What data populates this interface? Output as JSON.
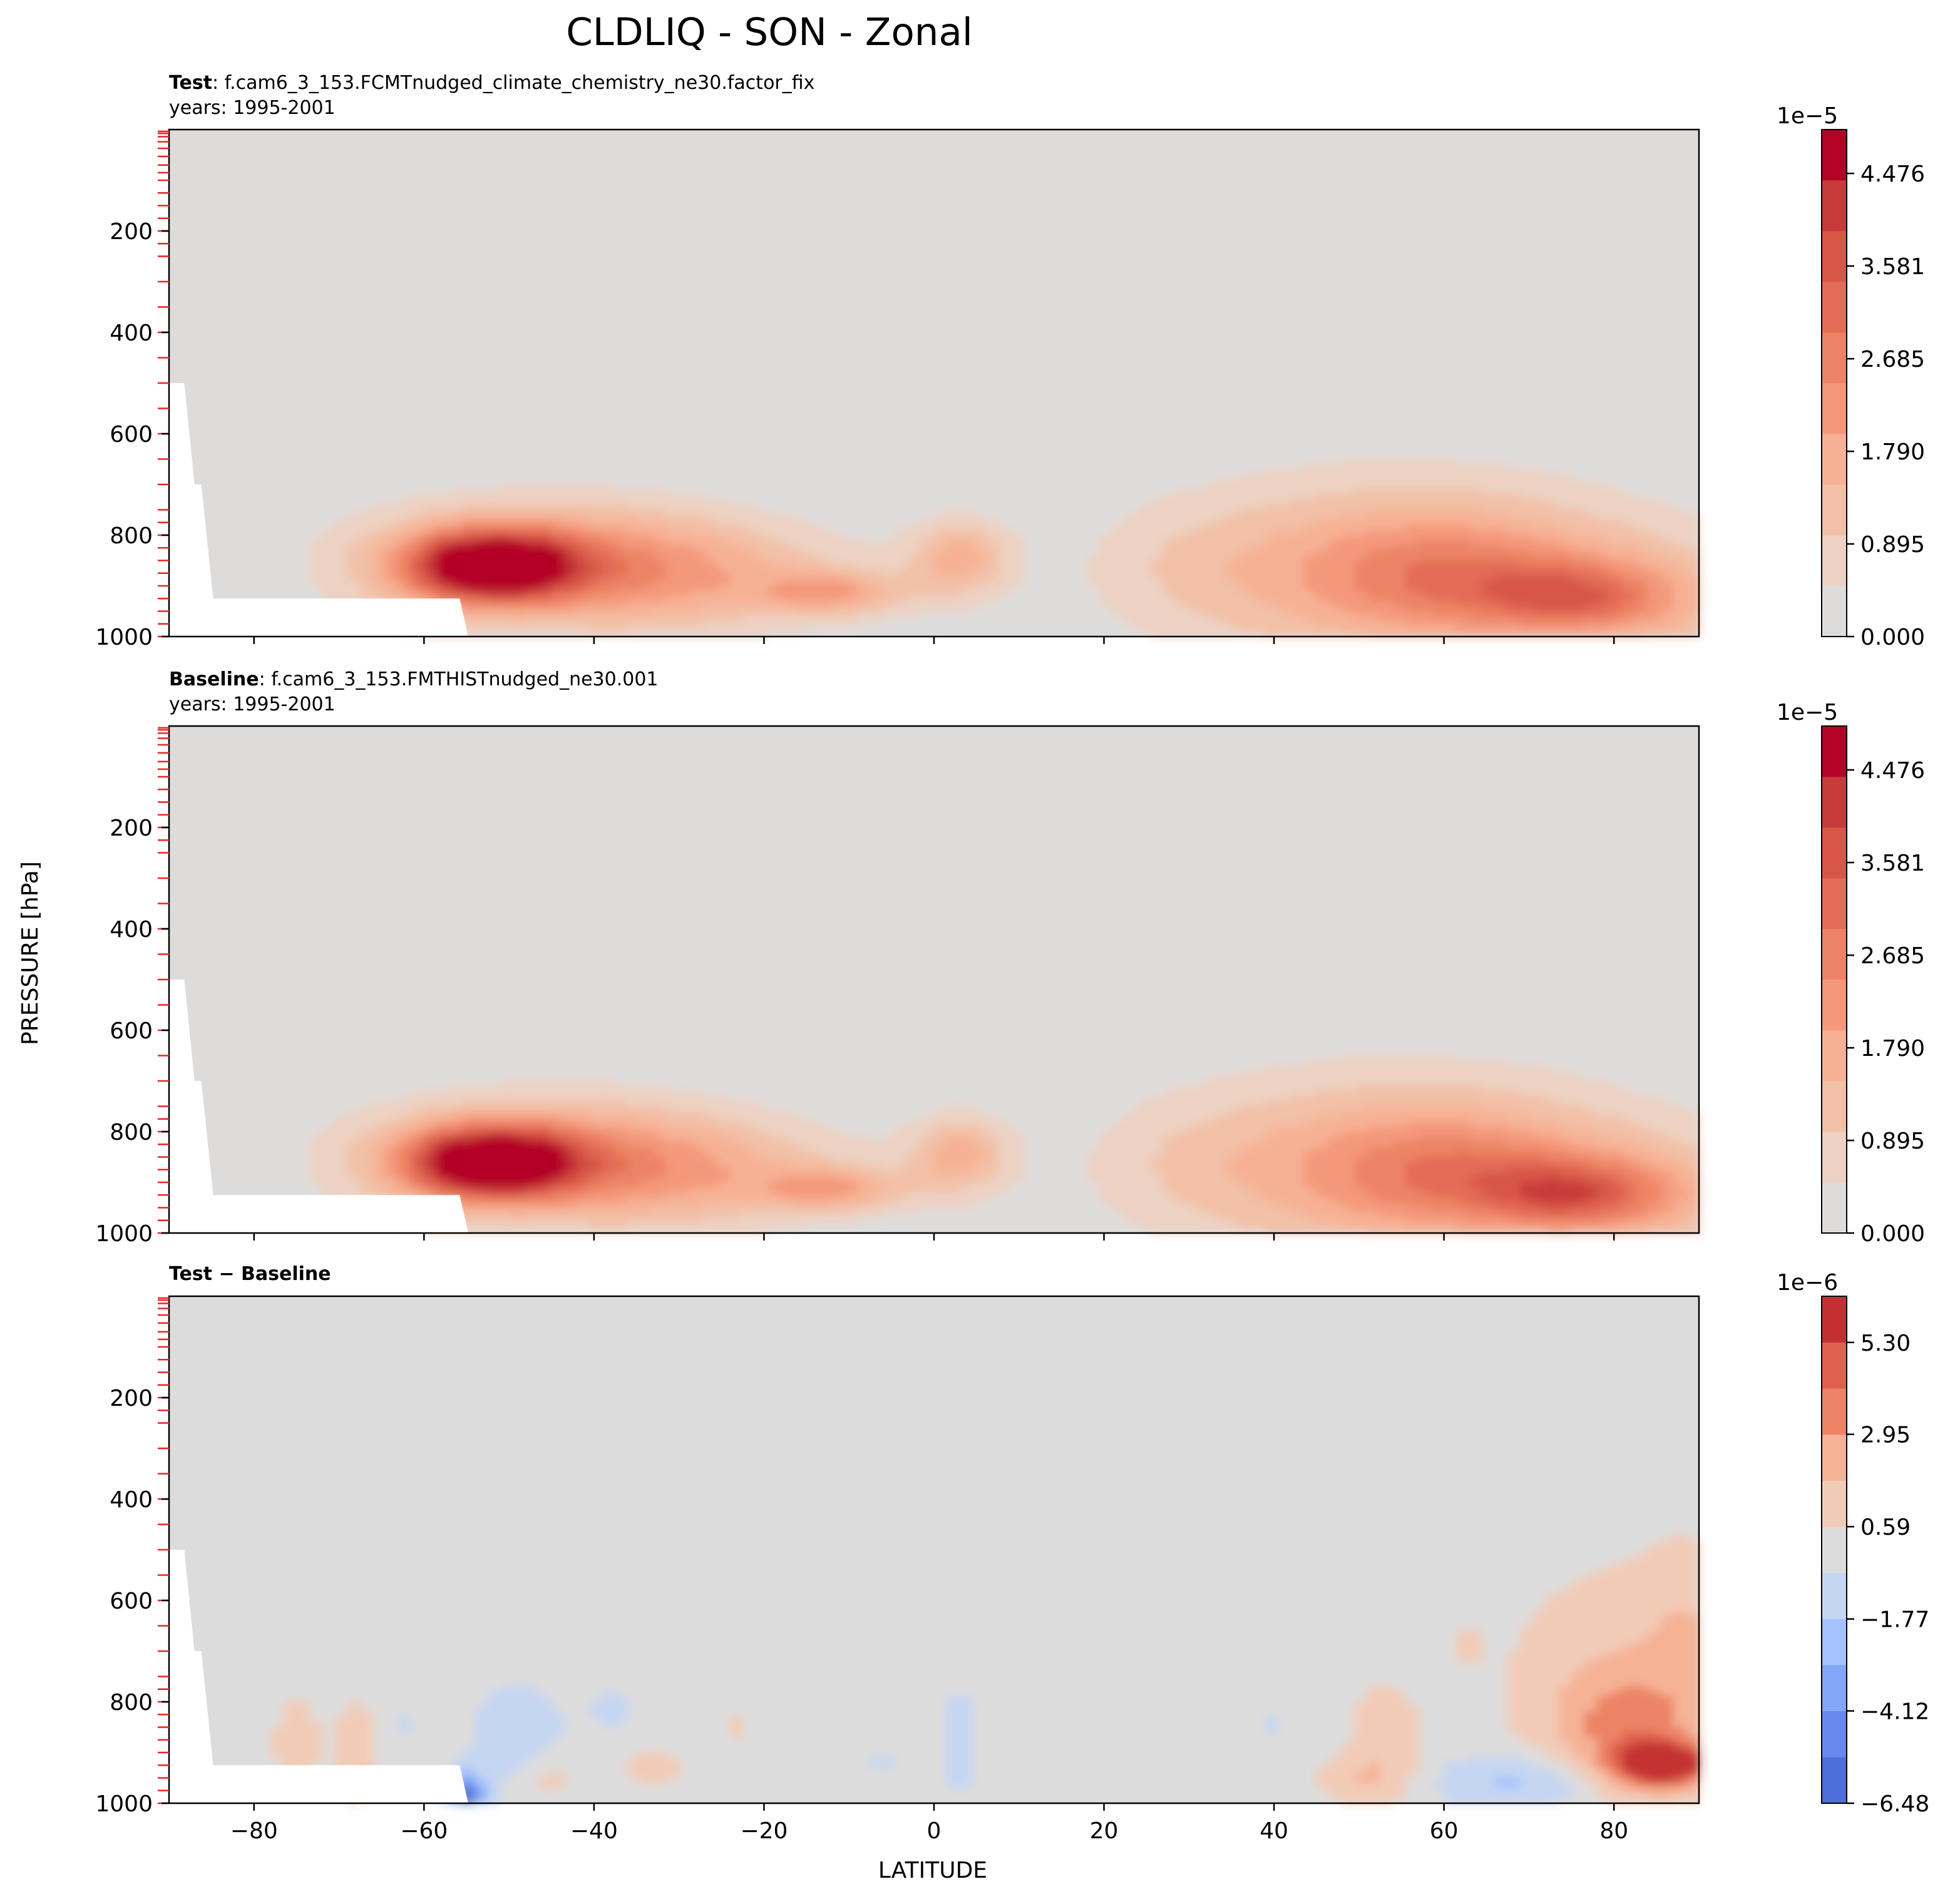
{
  "figure": {
    "suptitle": "CLDLIQ - SON - Zonal",
    "shared_ylabel": "PRESSURE [hPa]",
    "shared_xlabel": "LATITUDE"
  },
  "chart_data": [
    {
      "type": "contour",
      "panel": "test",
      "title_bold": "Test",
      "title_rest": ": f.cam6_3_153.FCMTnudged_climate_chemistry_ne30.factor_fix",
      "subtitle": "years: 1995-2001",
      "xlim": [
        -90,
        90
      ],
      "ylim": [
        1000,
        0
      ],
      "xticks": [
        -80,
        -60,
        -40,
        -20,
        0,
        20,
        40,
        60,
        80
      ],
      "yticks": [
        200,
        400,
        600,
        800,
        1000
      ],
      "colorbar": {
        "exponent": "1e−5",
        "min": 0.0,
        "max": 4.9,
        "tick_values": [
          0.0,
          0.895,
          1.79,
          2.685,
          3.581,
          4.476
        ],
        "tick_labels": [
          "0.000",
          "0.895",
          "1.790",
          "2.685",
          "3.581",
          "4.476"
        ],
        "colors": [
          "#dedcdb",
          "#edd1c2",
          "#f2c0a6",
          "#f6b194",
          "#f4987a",
          "#ed8365",
          "#e36c55",
          "#d85646",
          "#c83b3b",
          "#b40426"
        ]
      },
      "features": [
        {
          "name": "southern-ocean-max",
          "lat": -52,
          "p": 860,
          "value": 4.7
        },
        {
          "name": "arctic-max",
          "lat": 75,
          "p": 930,
          "value": 3.3
        },
        {
          "name": "northern-midlat",
          "lat": 60,
          "p": 880,
          "value": 2.9
        },
        {
          "name": "tropical-lobe",
          "lat": 3,
          "p": 850,
          "value": 1.6
        }
      ]
    },
    {
      "type": "contour",
      "panel": "baseline",
      "title_bold": "Baseline",
      "title_rest": ": f.cam6_3_153.FMTHISTnudged_ne30.001",
      "subtitle": "years: 1995-2001",
      "xlim": [
        -90,
        90
      ],
      "ylim": [
        1000,
        0
      ],
      "xticks": [
        -80,
        -60,
        -40,
        -20,
        0,
        20,
        40,
        60,
        80
      ],
      "yticks": [
        200,
        400,
        600,
        800,
        1000
      ],
      "colorbar": {
        "exponent": "1e−5",
        "min": 0.0,
        "max": 4.9,
        "tick_values": [
          0.0,
          0.895,
          1.79,
          2.685,
          3.581,
          4.476
        ],
        "tick_labels": [
          "0.000",
          "0.895",
          "1.790",
          "2.685",
          "3.581",
          "4.476"
        ],
        "colors": [
          "#dedcdb",
          "#edd1c2",
          "#f2c0a6",
          "#f6b194",
          "#f4987a",
          "#ed8365",
          "#e36c55",
          "#d85646",
          "#c83b3b",
          "#b40426"
        ]
      },
      "features": [
        {
          "name": "southern-ocean-max",
          "lat": -52,
          "p": 860,
          "value": 4.7
        },
        {
          "name": "arctic-max",
          "lat": 75,
          "p": 930,
          "value": 3.6
        },
        {
          "name": "northern-midlat",
          "lat": 60,
          "p": 880,
          "value": 2.9
        },
        {
          "name": "tropical-lobe",
          "lat": 3,
          "p": 850,
          "value": 1.6
        }
      ]
    },
    {
      "type": "contour",
      "panel": "difference",
      "title_bold": "Test − Baseline",
      "xlim": [
        -90,
        90
      ],
      "ylim": [
        1000,
        0
      ],
      "xticks": [
        -80,
        -60,
        -40,
        -20,
        0,
        20,
        40,
        60,
        80
      ],
      "xtick_labels": [
        "−80",
        "−60",
        "−40",
        "−20",
        "0",
        "20",
        "40",
        "60",
        "80"
      ],
      "yticks": [
        200,
        400,
        600,
        800,
        1000
      ],
      "colorbar": {
        "exponent": "1e−6",
        "min": -6.48,
        "max": 6.48,
        "tick_values": [
          -6.48,
          -4.12,
          -1.77,
          0.59,
          2.95,
          5.3
        ],
        "tick_labels": [
          "−6.48",
          "−4.12",
          "−1.77",
          "0.59",
          "2.95",
          "5.30"
        ],
        "colors": [
          "#4c6fd8",
          "#6788ee",
          "#84a6f8",
          "#a3c2fe",
          "#c5d6f2",
          "#dddcdc",
          "#f2cbb7",
          "#f5b295",
          "#ed8365",
          "#de604d",
          "#c43032"
        ]
      },
      "features": [
        {
          "name": "arctic-positive",
          "lat": 85,
          "p": 920,
          "value": 6.0
        },
        {
          "name": "arctic-positive-broad",
          "lat": 82,
          "p": 760,
          "value": 1.5
        },
        {
          "name": "northern-negative",
          "lat": 70,
          "p": 950,
          "value": -1.5
        },
        {
          "name": "antarctic-edge-negative",
          "lat": -54,
          "p": 975,
          "value": -5.5
        },
        {
          "name": "southern-negative",
          "lat": -48,
          "p": 880,
          "value": -1.2
        }
      ]
    }
  ]
}
